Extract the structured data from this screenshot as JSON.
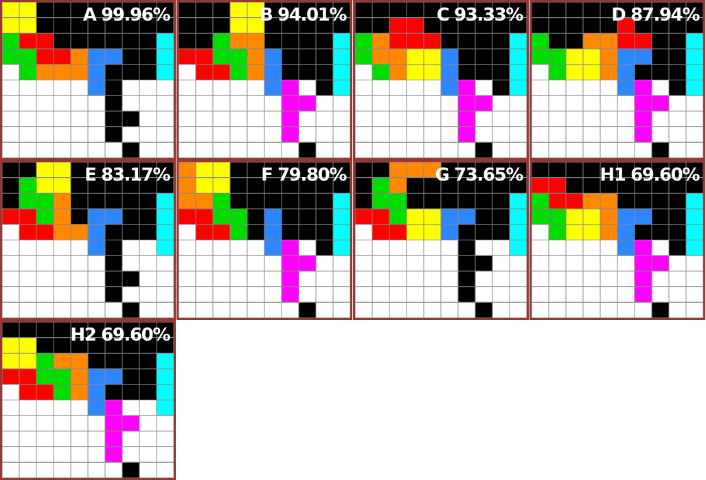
{
  "colors": {
    "K": "#000000",
    "W": "#ffffff",
    "Y": "#ffff00",
    "G": "#00dd00",
    "R": "#ff0000",
    "O": "#ff8800",
    "B": "#2e86ff",
    "C": "#00ffff",
    "M": "#ff00ff",
    "grid": "#888888",
    "frame": "#953735"
  },
  "boards": [
    {
      "label": "A 99.96%",
      "grid": [
        "YYKKKKKKKK",
        "YYKKKKKKKK",
        "GRRKKKKKKC",
        "GGRROBBKKC",
        "WGOOOBKKKC",
        "WWWWWBKWWW",
        "WWWWWWKWWW",
        "WWWWWWKKWW",
        "WWWWWWKWWW",
        "WWWWWWWKWW"
      ]
    },
    {
      "label": "B 94.01%",
      "grid": [
        "KKKYYKKKKK",
        "KKKYYKKKKK",
        "KKGOOKKKKC",
        "RRGGOBKKKC",
        "WRRGOBKKKC",
        "WWWWWBMWKC",
        "WWWWWWMMWW",
        "WWWWWWMWWW",
        "WWWWWWMWWW",
        "WWWWWWWKWW"
      ]
    },
    {
      "label": "C 93.33%",
      "grid": [
        "KKKKKKKKKK",
        "KKRRKKKKKK",
        "GORRRKKKKC",
        "GOOYYBKKKC",
        "WGOYYBKKKC",
        "WWWWWBMWKC",
        "WWWWWWMMWW",
        "WWWWWWMWWW",
        "WWWWWWMWWW",
        "WWWWWWWKWW"
      ]
    },
    {
      "label": "D 87.94%",
      "grid": [
        "KKKKKKKKKK",
        "KKKKKRKKKK",
        "GKKOORRKKC",
        "GGYYOBBKKC",
        "WGYYOBKKKC",
        "WWWWWBMWKC",
        "WWWWWWMMWW",
        "WWWWWWMWWW",
        "WWWWWWMWWW",
        "WWWWWWWKWW"
      ]
    },
    {
      "label": "E 83.17%",
      "grid": [
        "KKYYKKKKKK",
        "KGYYKKKKKK",
        "KGGOKKKKKC",
        "RRGOKBBKKC",
        "WRROOBKKKC",
        "WWWWWBKWWC",
        "WWWWWWKWWW",
        "WWWWWWKKWW",
        "WWWWWWKWWW",
        "WWWWWWWKWW"
      ]
    },
    {
      "label": "F 79.80%",
      "grid": [
        "OYYKKKKKKK",
        "OYYKKKKKKK",
        "OOGKKKKKKC",
        "RRGGKBKKKC",
        "WRRGKBKKKC",
        "WWWWWBMWKC",
        "WWWWWWMMWW",
        "WWWWWWMWWW",
        "WWWWWWMWWW",
        "WWWWWWWKWW"
      ]
    },
    {
      "label": "G 73.65%",
      "grid": [
        "KKOOOKKKKK",
        "KGOKKKKKKK",
        "KGGKKKKKKC",
        "RRGYYBBKKC",
        "WRRYYBKKKC",
        "WWWWWWKWWC",
        "WWWWWWKKWW",
        "WWWWWWKWWW",
        "WWWWWWKWWW",
        "WWWWWWWKWW"
      ]
    },
    {
      "label": "H1 69.60%",
      "grid": [
        "KKKKKKKKKK",
        "RRKKKKKKKK",
        "GRROOKKKKC",
        "GGYYOBBKKC",
        "WGYYOBKKKC",
        "WWWWWBMWKC",
        "WWWWWWMMWW",
        "WWWWWWMWWW",
        "WWWWWWMWWW",
        "WWWWWWWKWW"
      ]
    },
    {
      "label": "H2 69.60%",
      "grid": [
        "KKKKKKKKKK",
        "YYKKKKKKKK",
        "YYGOOKKKKC",
        "RRGGOBBKKC",
        "WRRGOBKKKC",
        "WWWWWBMWWC",
        "WWWWWWMMWW",
        "WWWWWWMWWW",
        "WWWWWWMWWW",
        "WWWWWWWKWW"
      ]
    }
  ]
}
